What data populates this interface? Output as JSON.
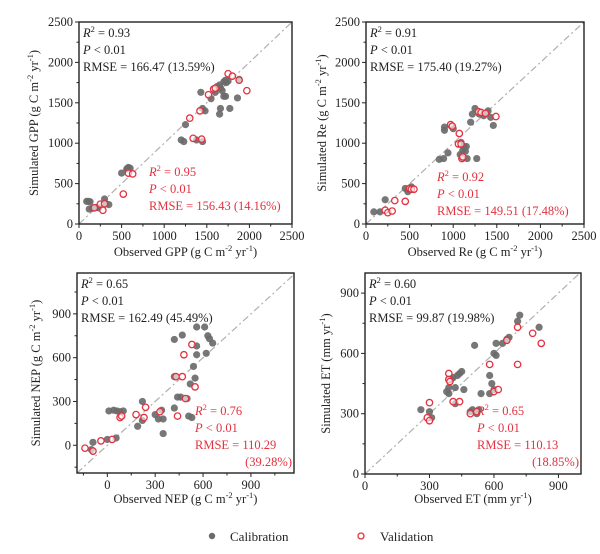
{
  "colors": {
    "calibration": "#6b6b6b",
    "validation": "#e3313f",
    "one_to_one": "#b0b0b0",
    "text": "#222222"
  },
  "legend": {
    "calibration_label": "Calibration",
    "validation_label": "Validation"
  },
  "chart_data": [
    {
      "id": "gpp",
      "type": "scatter",
      "title": "",
      "xlabel": "Observed GPP (g C m-2 yr-1)",
      "ylabel": "Simulated GPP (g C m-2 yr-1)",
      "xlabel_parts": [
        "Observed GPP (g C m",
        "-2",
        " yr",
        "-1",
        ")"
      ],
      "ylabel_parts": [
        "Simulated GPP (g C m",
        "-2",
        " yr",
        "-1",
        ")"
      ],
      "xlim": [
        0,
        2500
      ],
      "ylim": [
        0,
        2500
      ],
      "xticks": [
        0,
        500,
        1000,
        1500,
        2000,
        2500
      ],
      "yticks": [
        0,
        500,
        1000,
        1500,
        2000,
        2500
      ],
      "one_to_one_line": true,
      "stats_calibration": {
        "r2": "= 0.93",
        "p": "< 0.01",
        "rmse": "RMSE = 166.47 (13.59%)"
      },
      "stats_validation": {
        "r2": "= 0.95",
        "p": "< 0.01",
        "rmse": "RMSE = 156.43 (14.16%)"
      },
      "series": [
        {
          "name": "Calibration",
          "points": [
            [
              90,
              280
            ],
            [
              110,
              280
            ],
            [
              130,
              275
            ],
            [
              120,
              185
            ],
            [
              160,
              195
            ],
            [
              200,
              205
            ],
            [
              300,
              310
            ],
            [
              350,
              240
            ],
            [
              310,
              255
            ],
            [
              230,
              200
            ],
            [
              500,
              630
            ],
            [
              560,
              680
            ],
            [
              580,
              700
            ],
            [
              600,
              690
            ],
            [
              570,
              690
            ],
            [
              1200,
              1040
            ],
            [
              1230,
              1020
            ],
            [
              1250,
              1230
            ],
            [
              1380,
              1040
            ],
            [
              1430,
              1630
            ],
            [
              1450,
              1020
            ],
            [
              1450,
              1430
            ],
            [
              1480,
              1400
            ],
            [
              1550,
              1550
            ],
            [
              1600,
              1630
            ],
            [
              1620,
              1700
            ],
            [
              1650,
              1720
            ],
            [
              1660,
              1680
            ],
            [
              1680,
              1650
            ],
            [
              1700,
              1760
            ],
            [
              1720,
              1780
            ],
            [
              1730,
              1750
            ],
            [
              1650,
              1360
            ],
            [
              1660,
              1430
            ],
            [
              1700,
              1580
            ],
            [
              1720,
              1580
            ],
            [
              1770,
              1430
            ],
            [
              1860,
              1560
            ],
            [
              1750,
              1770
            ],
            [
              1880,
              1790
            ]
          ]
        },
        {
          "name": "Validation",
          "points": [
            [
              180,
              200
            ],
            [
              250,
              245
            ],
            [
              280,
              170
            ],
            [
              300,
              250
            ],
            [
              520,
              370
            ],
            [
              580,
              630
            ],
            [
              630,
              620
            ],
            [
              1300,
              1310
            ],
            [
              1340,
              1060
            ],
            [
              1420,
              1400
            ],
            [
              1440,
              1050
            ],
            [
              1520,
              1600
            ],
            [
              1580,
              1670
            ],
            [
              1600,
              1680
            ],
            [
              1750,
              1860
            ],
            [
              1800,
              1830
            ],
            [
              1880,
              1780
            ],
            [
              1970,
              1650
            ]
          ]
        }
      ]
    },
    {
      "id": "re",
      "type": "scatter",
      "title": "",
      "xlabel": "Observed Re (g C m-2 yr-1)",
      "ylabel": "Simulated Re (g C m-2 yr-1)",
      "xlabel_parts": [
        "Observed Re (g C m",
        "-2",
        " yr",
        "-1",
        ")"
      ],
      "ylabel_parts": [
        "Simulated Re (g C m",
        "-2",
        " yr",
        "-1",
        ")"
      ],
      "xlim": [
        0,
        2500
      ],
      "ylim": [
        0,
        2500
      ],
      "xticks": [
        0,
        500,
        1000,
        1500,
        2000,
        2500
      ],
      "yticks": [
        0,
        500,
        1000,
        1500,
        2000,
        2500
      ],
      "one_to_one_line": true,
      "stats_calibration": {
        "r2": "= 0.91",
        "p": "< 0.01",
        "rmse": "RMSE = 175.40 (19.27%)"
      },
      "stats_validation": {
        "r2": "= 0.92",
        "p": "< 0.01",
        "rmse": "RMSE = 149.51 (17.48%)"
      },
      "series": [
        {
          "name": "Calibration",
          "points": [
            [
              90,
              150
            ],
            [
              160,
              150
            ],
            [
              220,
              300
            ],
            [
              450,
              440
            ],
            [
              490,
              430
            ],
            [
              480,
              400
            ],
            [
              520,
              460
            ],
            [
              840,
              800
            ],
            [
              890,
              810
            ],
            [
              900,
              1200
            ],
            [
              900,
              1160
            ],
            [
              940,
              880
            ],
            [
              980,
              1210
            ],
            [
              1000,
              1180
            ],
            [
              1080,
              860
            ],
            [
              1090,
              1010
            ],
            [
              1100,
              810
            ],
            [
              1110,
              910
            ],
            [
              1120,
              960
            ],
            [
              1140,
              900
            ],
            [
              1150,
              960
            ],
            [
              1160,
              810
            ],
            [
              1200,
              1260
            ],
            [
              1220,
              1360
            ],
            [
              1250,
              1430
            ],
            [
              1270,
              810
            ],
            [
              1300,
              1360
            ],
            [
              1350,
              1340
            ],
            [
              1400,
              1400
            ],
            [
              1430,
              1320
            ],
            [
              1460,
              1220
            ],
            [
              1380,
              1370
            ]
          ]
        },
        {
          "name": "Validation",
          "points": [
            [
              220,
              170
            ],
            [
              250,
              140
            ],
            [
              300,
              160
            ],
            [
              330,
              290
            ],
            [
              450,
              280
            ],
            [
              500,
              440
            ],
            [
              520,
              430
            ],
            [
              550,
              430
            ],
            [
              970,
              1230
            ],
            [
              990,
              1210
            ],
            [
              1060,
              990
            ],
            [
              1070,
              1120
            ],
            [
              1090,
              990
            ],
            [
              1100,
              810
            ],
            [
              1110,
              830
            ],
            [
              1290,
              1390
            ],
            [
              1320,
              1380
            ],
            [
              1370,
              1370
            ],
            [
              1490,
              1330
            ]
          ]
        }
      ]
    },
    {
      "id": "nep",
      "type": "scatter",
      "title": "",
      "xlabel": "Observed NEP (g C m-2 yr-1)",
      "ylabel": "Simulated NEP (g C m-2 yr-1)",
      "xlabel_parts": [
        "Observed NEP (g C m",
        "-2",
        " yr",
        "-1",
        ")"
      ],
      "ylabel_parts": [
        "Simulated NEP (g C m",
        "-2",
        " yr",
        "-1",
        ")"
      ],
      "xlim": [
        -190,
        1170
      ],
      "ylim": [
        -190,
        1180
      ],
      "xticks": [
        0,
        300,
        600,
        900
      ],
      "yticks": [
        0,
        300,
        600,
        900
      ],
      "one_to_one_line": true,
      "stats_calibration": {
        "r2": "= 0.65",
        "p": "< 0.01",
        "rmse": "RMSE = 162.49 (45.49%)"
      },
      "stats_validation": {
        "r2": "= 0.76",
        "p": "< 0.01",
        "rmse": "RMSE = 110.29",
        "rmse_pct": "(39.28%)"
      },
      "series": [
        {
          "name": "Calibration",
          "points": [
            [
              -100,
              -30
            ],
            [
              -90,
              20
            ],
            [
              0,
              40
            ],
            [
              10,
              235
            ],
            [
              40,
              240
            ],
            [
              55,
              50
            ],
            [
              60,
              235
            ],
            [
              80,
              230
            ],
            [
              100,
              235
            ],
            [
              190,
              130
            ],
            [
              220,
              300
            ],
            [
              220,
              170
            ],
            [
              300,
              210
            ],
            [
              320,
              180
            ],
            [
              340,
              240
            ],
            [
              350,
              180
            ],
            [
              350,
              80
            ],
            [
              420,
              725
            ],
            [
              420,
              255
            ],
            [
              420,
              470
            ],
            [
              440,
              330
            ],
            [
              460,
              330
            ],
            [
              470,
              755
            ],
            [
              500,
              320
            ],
            [
              510,
              200
            ],
            [
              520,
              420
            ],
            [
              540,
              540
            ],
            [
              550,
              460
            ],
            [
              560,
              680
            ],
            [
              560,
              620
            ],
            [
              560,
              810
            ],
            [
              610,
              810
            ],
            [
              620,
              630
            ],
            [
              630,
              750
            ],
            [
              640,
              730
            ],
            [
              660,
              700
            ],
            [
              530,
              190
            ]
          ]
        },
        {
          "name": "Validation",
          "points": [
            [
              -140,
              -20
            ],
            [
              -90,
              -40
            ],
            [
              -40,
              30
            ],
            [
              30,
              40
            ],
            [
              80,
              190
            ],
            [
              90,
              200
            ],
            [
              180,
              210
            ],
            [
              230,
              190
            ],
            [
              240,
              260
            ],
            [
              330,
              230
            ],
            [
              430,
              470
            ],
            [
              440,
              200
            ],
            [
              470,
              470
            ],
            [
              480,
              620
            ],
            [
              490,
              320
            ],
            [
              530,
              690
            ],
            [
              550,
              400
            ]
          ]
        }
      ]
    },
    {
      "id": "et",
      "type": "scatter",
      "title": "",
      "xlabel": "Observed ET (mm yr-1)",
      "ylabel": "Simulated ET (mm yr-1)",
      "xlabel_parts": [
        "Observed ET (mm yr",
        "-1",
        ")"
      ],
      "ylabel_parts": [
        "Simulated ET (mm yr",
        "-1",
        ")"
      ],
      "xlim": [
        0,
        1005
      ],
      "ylim": [
        0,
        1000
      ],
      "xticks": [
        0,
        300,
        600,
        900
      ],
      "yticks": [
        0,
        300,
        600,
        900
      ],
      "one_to_one_line": true,
      "stats_calibration": {
        "r2": "= 0.60",
        "p": "< 0.01",
        "rmse": "RMSE = 99.87 (19.98%)"
      },
      "stats_validation": {
        "r2": "= 0.65",
        "p": "< 0.01",
        "rmse": "RMSE = 110.13",
        "rmse_pct": "(18.85%)"
      },
      "series": [
        {
          "name": "Calibration",
          "points": [
            [
              260,
              320
            ],
            [
              300,
              310
            ],
            [
              310,
              280
            ],
            [
              380,
              410
            ],
            [
              390,
              430
            ],
            [
              390,
              400
            ],
            [
              400,
              470
            ],
            [
              410,
              480
            ],
            [
              420,
              350
            ],
            [
              420,
              430
            ],
            [
              430,
              490
            ],
            [
              440,
              500
            ],
            [
              450,
              510
            ],
            [
              460,
              420
            ],
            [
              490,
              310
            ],
            [
              500,
              320
            ],
            [
              510,
              640
            ],
            [
              520,
              300
            ],
            [
              530,
              320
            ],
            [
              540,
              400
            ],
            [
              580,
              400
            ],
            [
              580,
              490
            ],
            [
              590,
              450
            ],
            [
              600,
              600
            ],
            [
              600,
              420
            ],
            [
              610,
              650
            ],
            [
              610,
              590
            ],
            [
              640,
              650
            ],
            [
              660,
              670
            ],
            [
              670,
              680
            ],
            [
              710,
              760
            ],
            [
              720,
              790
            ],
            [
              810,
              730
            ]
          ]
        },
        {
          "name": "Validation",
          "points": [
            [
              290,
              280
            ],
            [
              300,
              265
            ],
            [
              300,
              355
            ],
            [
              390,
              500
            ],
            [
              390,
              470
            ],
            [
              395,
              460
            ],
            [
              410,
              360
            ],
            [
              440,
              360
            ],
            [
              490,
              300
            ],
            [
              520,
              310
            ],
            [
              580,
              545
            ],
            [
              600,
              410
            ],
            [
              620,
              420
            ],
            [
              660,
              665
            ],
            [
              710,
              730
            ],
            [
              710,
              545
            ],
            [
              780,
              700
            ],
            [
              820,
              650
            ]
          ]
        }
      ]
    }
  ]
}
